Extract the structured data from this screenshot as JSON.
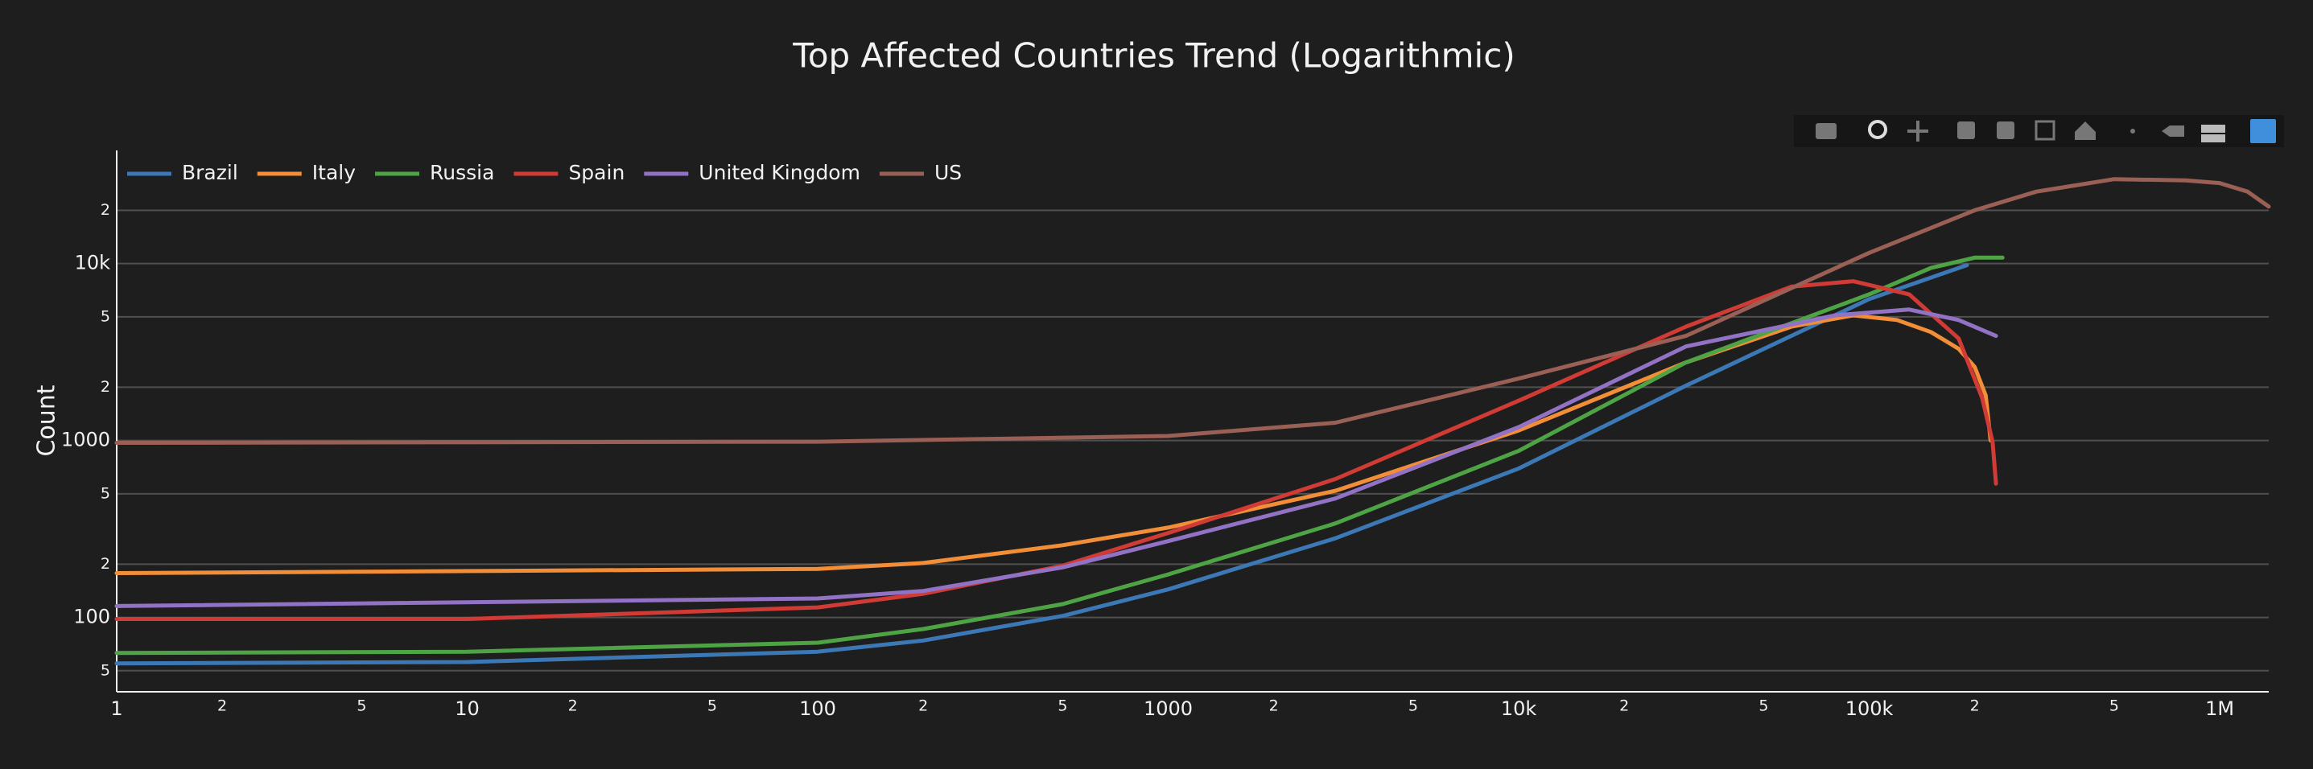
{
  "chart_data": {
    "type": "line",
    "title": "Top Affected Countries Trend (Logarithmic)",
    "y_label": "Count",
    "xscale": "log",
    "yscale": "log",
    "grid": "y",
    "xlim": [
      1,
      1380000
    ],
    "ylim": [
      38,
      43600
    ],
    "xticks": [
      1,
      2,
      5,
      10,
      {
        "value": 20,
        "label": "2"
      },
      {
        "value": 50,
        "label": "5"
      },
      100,
      {
        "value": 200,
        "label": "2"
      },
      {
        "value": 500,
        "label": "5"
      },
      1000,
      {
        "value": 2000,
        "label": "2"
      },
      {
        "value": 5000,
        "label": "5"
      },
      {
        "value": 10000,
        "label": "10k"
      },
      {
        "value": 20000,
        "label": "2"
      },
      {
        "value": 50000,
        "label": "5"
      },
      {
        "value": 100000,
        "label": "100k"
      },
      {
        "value": 200000,
        "label": "2"
      },
      {
        "value": 500000,
        "label": "5"
      },
      {
        "value": 1000000,
        "label": "1M"
      }
    ],
    "yticks": [
      {
        "value": 50,
        "label": "5"
      },
      100,
      {
        "value": 200,
        "label": "2"
      },
      {
        "value": 500,
        "label": "5"
      },
      1000,
      {
        "value": 2000,
        "label": "2"
      },
      {
        "value": 5000,
        "label": "5"
      },
      {
        "value": 10000,
        "label": "10k"
      },
      {
        "value": 20000,
        "label": "2"
      }
    ],
    "series": [
      {
        "name": "Brazil",
        "color": "#3b78b5",
        "x": [
          1,
          10,
          100,
          200,
          500,
          1000,
          3000,
          10000,
          30000,
          100000,
          190000
        ],
        "values": [
          55,
          56,
          64,
          74,
          102,
          144,
          280,
          695,
          2040,
          6300,
          9800
        ]
      },
      {
        "name": "Italy",
        "color": "#f28e38",
        "x": [
          1,
          100,
          200,
          500,
          1000,
          3000,
          10000,
          30000,
          60000,
          90000,
          120000,
          150000,
          180000,
          200000,
          215000,
          222000
        ],
        "values": [
          178,
          188,
          203,
          256,
          322,
          520,
          1140,
          2760,
          4400,
          5100,
          4800,
          4100,
          3300,
          2600,
          1800,
          1000
        ]
      },
      {
        "name": "Russia",
        "color": "#4ea444",
        "x": [
          1,
          10,
          100,
          200,
          500,
          1000,
          3000,
          10000,
          30000,
          100000,
          150000,
          200000,
          240000
        ],
        "values": [
          63,
          64,
          72,
          86,
          119,
          175,
          340,
          875,
          2760,
          6700,
          9450,
          10800,
          10800
        ]
      },
      {
        "name": "Spain",
        "color": "#d03b35",
        "x": [
          1,
          10,
          100,
          200,
          500,
          1000,
          3000,
          10000,
          30000,
          60000,
          90000,
          130000,
          180000,
          210000,
          225000,
          230000
        ],
        "values": [
          98,
          98,
          114,
          136,
          196,
          300,
          606,
          1680,
          4400,
          7400,
          7950,
          6700,
          3770,
          1740,
          980,
          570
        ]
      },
      {
        "name": "United Kingdom",
        "color": "#9272c4",
        "x": [
          1,
          100,
          200,
          500,
          1000,
          3000,
          10000,
          30000,
          80000,
          130000,
          180000,
          230000
        ],
        "values": [
          116,
          128,
          141,
          192,
          270,
          470,
          1190,
          3400,
          5100,
          5500,
          4800,
          3900
        ]
      },
      {
        "name": "US",
        "color": "#9a5f55",
        "x": [
          1,
          100,
          1000,
          3000,
          10000,
          30000,
          100000,
          200000,
          300000,
          500000,
          800000,
          1000000,
          1200000,
          1380000
        ],
        "values": [
          970,
          985,
          1060,
          1260,
          2240,
          3900,
          11500,
          20000,
          25500,
          30000,
          29500,
          28500,
          25500,
          21000
        ]
      }
    ]
  }
}
